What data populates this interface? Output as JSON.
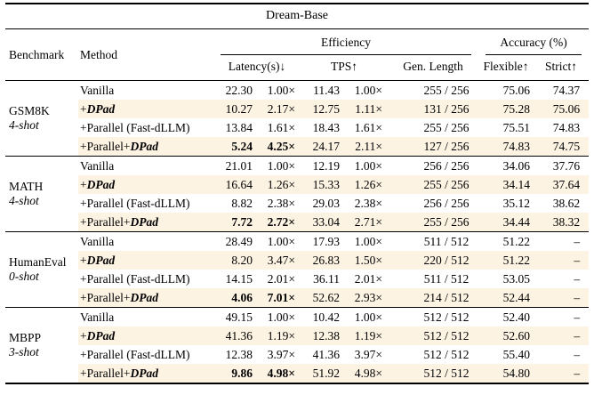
{
  "table": {
    "title": "Dream-Base",
    "columns": {
      "benchmark": "Benchmark",
      "method": "Method",
      "efficiency_group": "Efficiency",
      "accuracy_group": "Accuracy (%)",
      "latency": "Latency(s)↓",
      "tps": "TPS↑",
      "gen_length": "Gen. Length",
      "flexible": "Flexible↑",
      "strict": "Strict↑"
    },
    "colors": {
      "highlight_row": "#fdf3e3",
      "text": "#000000",
      "background": "#ffffff"
    },
    "groups": [
      {
        "benchmark": "GSM8K",
        "shots": "4-shot",
        "rows": [
          {
            "method_pre": "Vanilla",
            "method_em": "",
            "latency": "22.30",
            "latency_speedup": "1.00×",
            "tps": "11.43",
            "tps_speedup": "1.00×",
            "gen_length": "255 / 256",
            "flexible": "75.06",
            "strict": "74.37",
            "highlight": false,
            "bold": false
          },
          {
            "method_pre": "+",
            "method_em": "DPad",
            "latency": "10.27",
            "latency_speedup": "2.17×",
            "tps": "12.75",
            "tps_speedup": "1.11×",
            "gen_length": "131 / 256",
            "flexible": "75.28",
            "strict": "75.06",
            "highlight": true,
            "bold": false
          },
          {
            "method_pre": "+Parallel (Fast-dLLM)",
            "method_em": "",
            "latency": "13.84",
            "latency_speedup": "1.61×",
            "tps": "18.43",
            "tps_speedup": "1.61×",
            "gen_length": "255 / 256",
            "flexible": "75.51",
            "strict": "74.83",
            "highlight": false,
            "bold": false
          },
          {
            "method_pre": "+Parallel+",
            "method_em": "DPad",
            "latency": "5.24",
            "latency_speedup": "4.25×",
            "tps": "24.17",
            "tps_speedup": "2.11×",
            "gen_length": "127 / 256",
            "flexible": "74.83",
            "strict": "74.75",
            "highlight": true,
            "bold": true
          }
        ]
      },
      {
        "benchmark": "MATH",
        "shots": "4-shot",
        "rows": [
          {
            "method_pre": "Vanilla",
            "method_em": "",
            "latency": "21.01",
            "latency_speedup": "1.00×",
            "tps": "12.19",
            "tps_speedup": "1.00×",
            "gen_length": "256 / 256",
            "flexible": "34.06",
            "strict": "37.76",
            "highlight": false,
            "bold": false
          },
          {
            "method_pre": "+",
            "method_em": "DPad",
            "latency": "16.64",
            "latency_speedup": "1.26×",
            "tps": "15.33",
            "tps_speedup": "1.26×",
            "gen_length": "255 / 256",
            "flexible": "34.14",
            "strict": "37.64",
            "highlight": true,
            "bold": false
          },
          {
            "method_pre": "+Parallel (Fast-dLLM)",
            "method_em": "",
            "latency": "8.82",
            "latency_speedup": "2.38×",
            "tps": "29.03",
            "tps_speedup": "2.38×",
            "gen_length": "256 / 256",
            "flexible": "35.12",
            "strict": "38.62",
            "highlight": false,
            "bold": false
          },
          {
            "method_pre": "+Parallel+",
            "method_em": "DPad",
            "latency": "7.72",
            "latency_speedup": "2.72×",
            "tps": "33.04",
            "tps_speedup": "2.71×",
            "gen_length": "255 / 256",
            "flexible": "34.44",
            "strict": "38.32",
            "highlight": true,
            "bold": true
          }
        ]
      },
      {
        "benchmark": "HumanEval",
        "shots": "0-shot",
        "rows": [
          {
            "method_pre": "Vanilla",
            "method_em": "",
            "latency": "28.49",
            "latency_speedup": "1.00×",
            "tps": "17.93",
            "tps_speedup": "1.00×",
            "gen_length": "511 / 512",
            "flexible": "51.22",
            "strict": "–",
            "highlight": false,
            "bold": false
          },
          {
            "method_pre": "+",
            "method_em": "DPad",
            "latency": "8.20",
            "latency_speedup": "3.47×",
            "tps": "26.83",
            "tps_speedup": "1.50×",
            "gen_length": "220 / 512",
            "flexible": "51.22",
            "strict": "–",
            "highlight": true,
            "bold": false
          },
          {
            "method_pre": "+Parallel (Fast-dLLM)",
            "method_em": "",
            "latency": "14.15",
            "latency_speedup": "2.01×",
            "tps": "36.11",
            "tps_speedup": "2.01×",
            "gen_length": "511 / 512",
            "flexible": "53.05",
            "strict": "–",
            "highlight": false,
            "bold": false
          },
          {
            "method_pre": "+Parallel+",
            "method_em": "DPad",
            "latency": "4.06",
            "latency_speedup": "7.01×",
            "tps": "52.62",
            "tps_speedup": "2.93×",
            "gen_length": "214 / 512",
            "flexible": "52.44",
            "strict": "–",
            "highlight": true,
            "bold": true
          }
        ]
      },
      {
        "benchmark": "MBPP",
        "shots": "3-shot",
        "rows": [
          {
            "method_pre": "Vanilla",
            "method_em": "",
            "latency": "49.15",
            "latency_speedup": "1.00×",
            "tps": "10.42",
            "tps_speedup": "1.00×",
            "gen_length": "512 / 512",
            "flexible": "52.40",
            "strict": "–",
            "highlight": false,
            "bold": false
          },
          {
            "method_pre": "+",
            "method_em": "DPad",
            "latency": "41.36",
            "latency_speedup": "1.19×",
            "tps": "12.38",
            "tps_speedup": "1.19×",
            "gen_length": "512 / 512",
            "flexible": "52.60",
            "strict": "–",
            "highlight": true,
            "bold": false
          },
          {
            "method_pre": "+Parallel (Fast-dLLM)",
            "method_em": "",
            "latency": "12.38",
            "latency_speedup": "3.97×",
            "tps": "41.36",
            "tps_speedup": "3.97×",
            "gen_length": "512 / 512",
            "flexible": "55.40",
            "strict": "–",
            "highlight": false,
            "bold": false
          },
          {
            "method_pre": "+Parallel+",
            "method_em": "DPad",
            "latency": "9.86",
            "latency_speedup": "4.98×",
            "tps": "51.92",
            "tps_speedup": "4.98×",
            "gen_length": "512 / 512",
            "flexible": "54.80",
            "strict": "–",
            "highlight": true,
            "bold": true
          }
        ]
      }
    ]
  }
}
